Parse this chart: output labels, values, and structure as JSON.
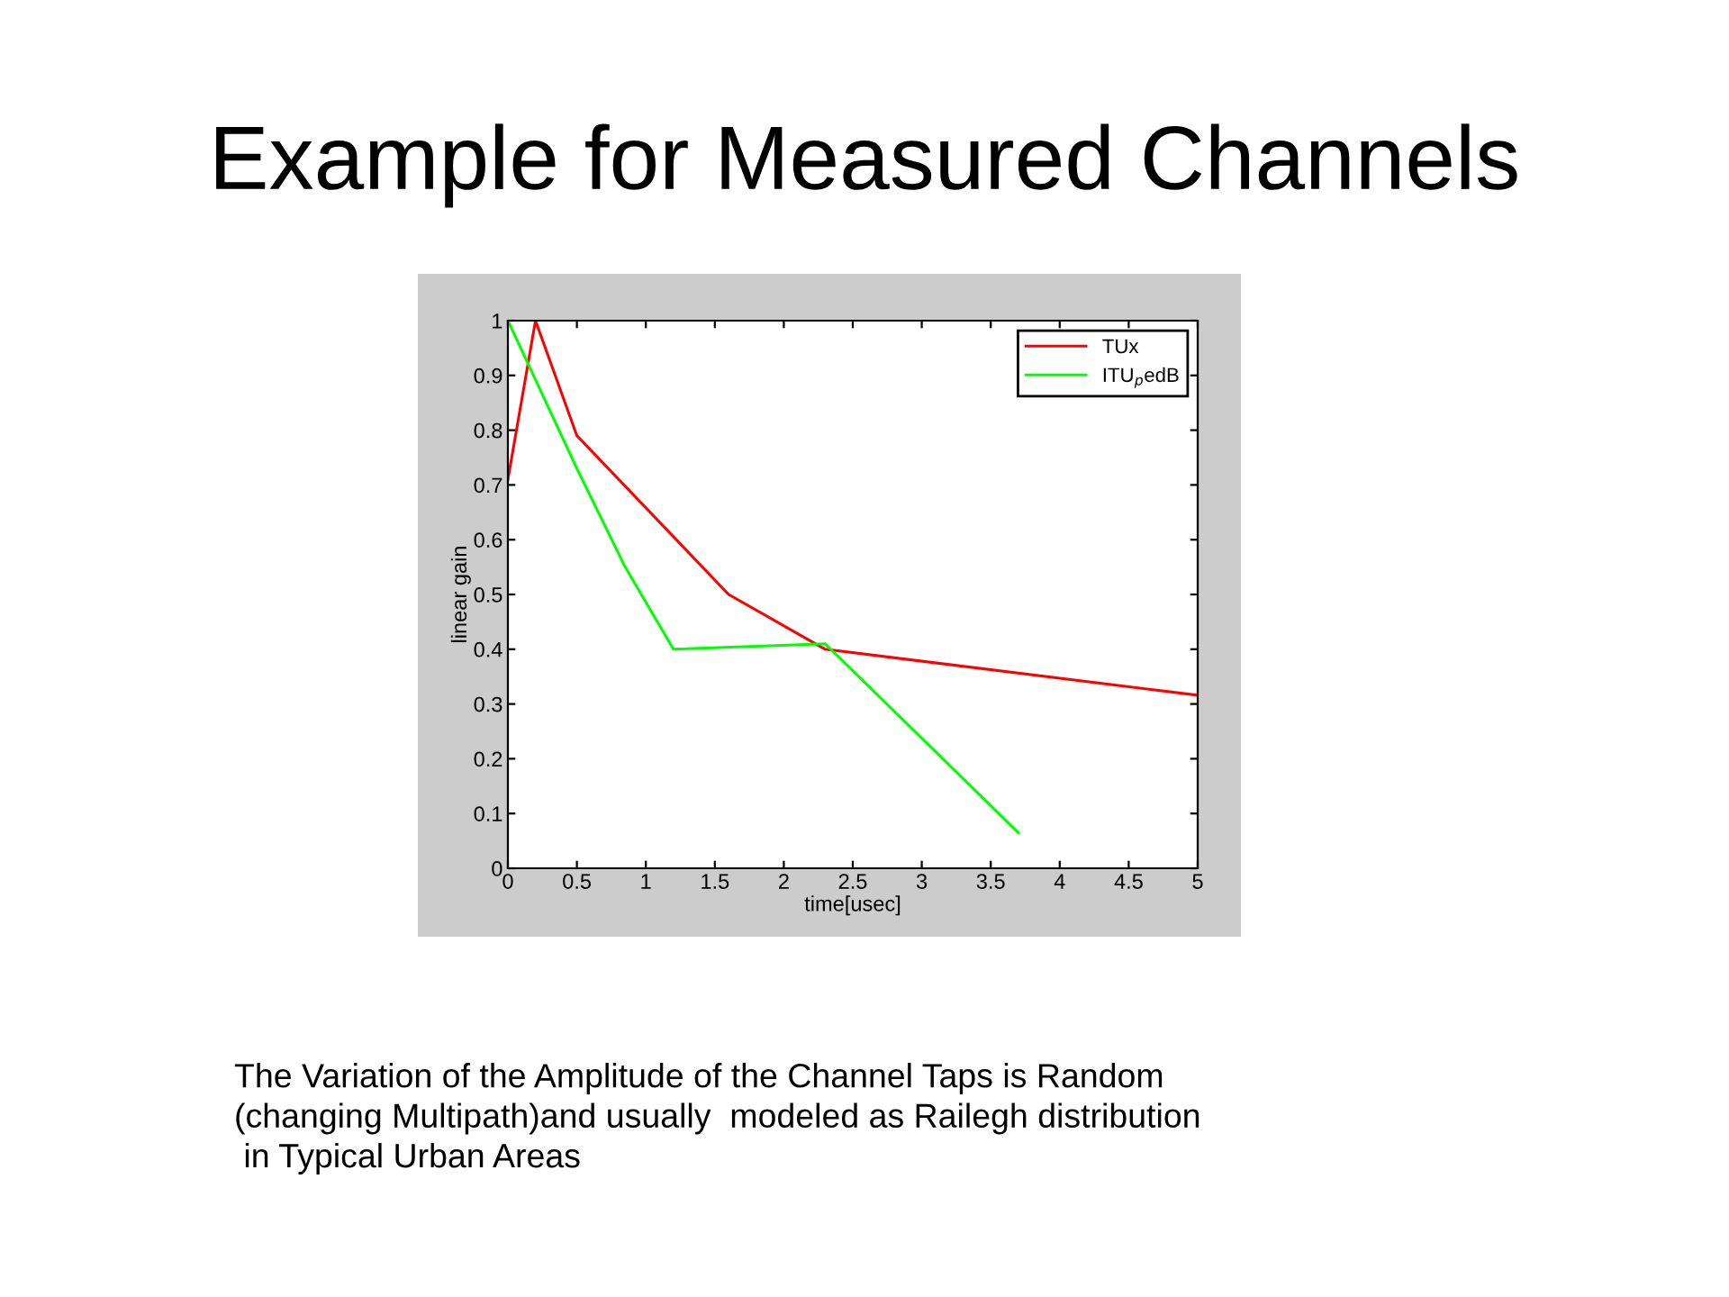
{
  "chart_data": {
    "type": "line",
    "title": "Example for Measured Channels",
    "xlabel": "time[usec]",
    "ylabel": "linear gain",
    "annotations": [
      "The Variation of the Amplitude of the Channel Taps is Random\n(changing Multipath)and usually  modeled as Railegh distribution\n in Typical Urban Areas"
    ],
    "series": [
      {
        "name": "TUx",
        "color": "#ff0000",
        "x": [
          0,
          0.2,
          0.5,
          1.6,
          2.3,
          5
        ],
        "values": [
          0.71,
          1.0,
          0.79,
          0.5,
          0.4,
          0.316
        ]
      },
      {
        "name": "ITU$_{p}$edB",
        "color": "#00ff00",
        "x": [
          0,
          0.5,
          0.85,
          1.2,
          2.3,
          3.7
        ],
        "values": [
          1.0,
          0.73,
          0.55,
          0.4,
          0.41,
          0.065
        ]
      }
    ],
    "xlim": [
      0,
      5
    ],
    "ylim": [
      0,
      1
    ],
    "xticks": [
      0,
      0.5,
      1,
      1.5,
      2,
      2.5,
      3,
      3.5,
      4,
      4.5,
      5
    ],
    "yticks": [
      0,
      0.1,
      0.2,
      0.3,
      0.4,
      0.5,
      0.6,
      0.7,
      0.8,
      0.9,
      1
    ],
    "legend": "top right",
    "grid": false,
    "marker": "none",
    "line_style": "solid"
  }
}
